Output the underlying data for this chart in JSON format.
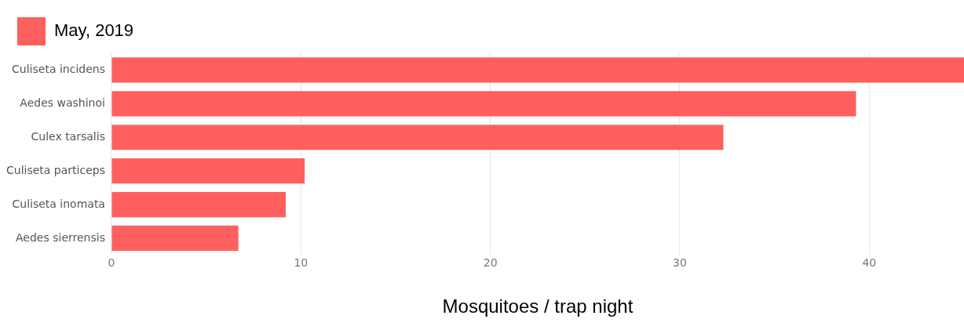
{
  "chart_data": {
    "type": "bar",
    "orientation": "horizontal",
    "xlabel": "Mosquitoes / trap night",
    "categories": [
      "Culiseta incidens",
      "Aedes washinoi",
      "Culex tarsalis",
      "Culiseta particeps",
      "Culiseta inomata",
      "Aedes sierrensis"
    ],
    "series": [
      {
        "name": "May, 2019",
        "color": "#ff5f5d",
        "values": [
          45,
          39.3,
          32.3,
          10.2,
          9.2,
          6.7
        ]
      }
    ],
    "xlim": [
      0,
      45
    ],
    "xticks": [
      0,
      10,
      20,
      30,
      40
    ],
    "grid": "x",
    "legend": "top left"
  }
}
